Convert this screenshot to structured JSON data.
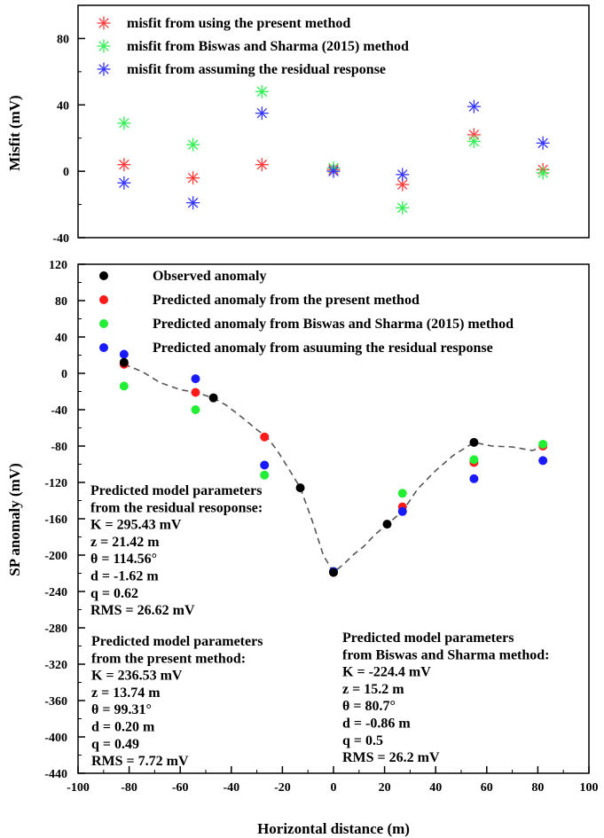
{
  "chart_data": [
    {
      "type": "scatter",
      "ylabel": "Misfit (mV)",
      "ylim": [
        -40,
        100
      ],
      "yticks": [
        "-40",
        "0",
        "40",
        "80"
      ],
      "xlim": [
        -100,
        100
      ],
      "grid": false,
      "legend_position": "top-left",
      "marker": "asterisk",
      "series": [
        {
          "name": "misfit from using the present method",
          "color": "#ff3b3b",
          "x": [
            -82,
            -55,
            -28,
            0,
            27,
            55,
            82
          ],
          "y": [
            4,
            -4,
            4,
            1,
            -8,
            22,
            1
          ]
        },
        {
          "name": "misfit from Biswas and Sharma (2015) method",
          "color": "#33ee55",
          "x": [
            -82,
            -55,
            -28,
            0,
            27,
            55,
            82
          ],
          "y": [
            29,
            16,
            48,
            2,
            -22,
            18,
            -1
          ]
        },
        {
          "name": "misfit from assuming the residual response",
          "color": "#3535ff",
          "x": [
            -82,
            -55,
            -28,
            0,
            27,
            55,
            82
          ],
          "y": [
            -7,
            -19,
            35,
            0,
            -2,
            39,
            17
          ]
        }
      ]
    },
    {
      "type": "scatter",
      "xlabel": "Horizontal distance (m)",
      "ylabel": "SP anomaly (mV)",
      "xlim": [
        -100,
        100
      ],
      "ylim": [
        -440,
        120
      ],
      "xticks": [
        "-100",
        "-80",
        "-60",
        "-40",
        "-20",
        "0",
        "20",
        "40",
        "60",
        "80",
        "100"
      ],
      "yticks": [
        "-440",
        "-400",
        "-360",
        "-320",
        "-280",
        "-240",
        "-200",
        "-160",
        "-120",
        "-80",
        "-40",
        "0",
        "40",
        "80",
        "120"
      ],
      "grid": false,
      "legend_position": "top-left",
      "marker": "circle",
      "series": [
        {
          "name": "Observed anomaly",
          "color": "#000000",
          "x": [
            -82,
            -47,
            -13,
            0,
            21,
            55
          ],
          "y": [
            12,
            -27,
            -126,
            -219,
            -166,
            -76
          ]
        },
        {
          "name": "Predicted anomaly from the present method",
          "color": "#ff1a1a",
          "x": [
            -82,
            -54,
            -27,
            0,
            27,
            55,
            82
          ],
          "y": [
            10,
            -21,
            -70,
            -219,
            -147,
            -98,
            -80
          ]
        },
        {
          "name": "Predicted anomaly from Biswas and Sharma (2015) method",
          "color": "#22ee33",
          "x": [
            -82,
            -54,
            -27,
            0,
            27,
            55,
            82
          ],
          "y": [
            -14,
            -40,
            -112,
            -218,
            -132,
            -95,
            -78
          ]
        },
        {
          "name": "Predicted anomaly from asuuming the residual response",
          "color": "#1a1aff",
          "x": [
            -82,
            -54,
            -27,
            0,
            27,
            55,
            82
          ],
          "y": [
            21,
            -6,
            -101,
            -218,
            -152,
            -116,
            -96
          ]
        }
      ],
      "curve": {
        "style": "dashed",
        "color": "#555555",
        "x": [
          -82,
          -75,
          -68,
          -60,
          -54,
          -47,
          -42,
          -36,
          -30,
          -26,
          -22,
          -18,
          -13,
          -8,
          -4,
          0,
          4,
          8,
          12,
          16,
          21,
          27,
          33,
          40,
          47,
          55,
          62,
          70,
          78,
          82
        ],
        "y": [
          10,
          2,
          -10,
          -18,
          -21,
          -27,
          -35,
          -48,
          -62,
          -70,
          -85,
          -103,
          -126,
          -165,
          -200,
          -219,
          -210,
          -199,
          -190,
          -178,
          -166,
          -152,
          -127,
          -107,
          -90,
          -76,
          -80,
          -81,
          -85,
          -80
        ]
      },
      "annotations": [
        {
          "lines": [
            "Predicted model parameters",
            "from the residual resoponse:",
            "K = 295.43 mV",
            "z = 21.42 m",
            "θ = 114.56°",
            "d = -1.62 m",
            "q = 0.62",
            "RMS = 26.62 mV"
          ]
        },
        {
          "lines": [
            "Predicted model parameters",
            "from the present method:",
            "K = 236.53 mV",
            "z = 13.74 m",
            "θ = 99.31°",
            "d = 0.20 m",
            "q = 0.49",
            "RMS = 7.72 mV"
          ]
        },
        {
          "lines": [
            "Predicted model parameters",
            "from Biswas and Sharma method:",
            "K = -224.4 mV",
            "z = 15.2 m",
            "θ = 80.7°",
            "d = -0.86 m",
            "q = 0.5",
            "RMS = 26.2 mV"
          ]
        }
      ]
    }
  ]
}
